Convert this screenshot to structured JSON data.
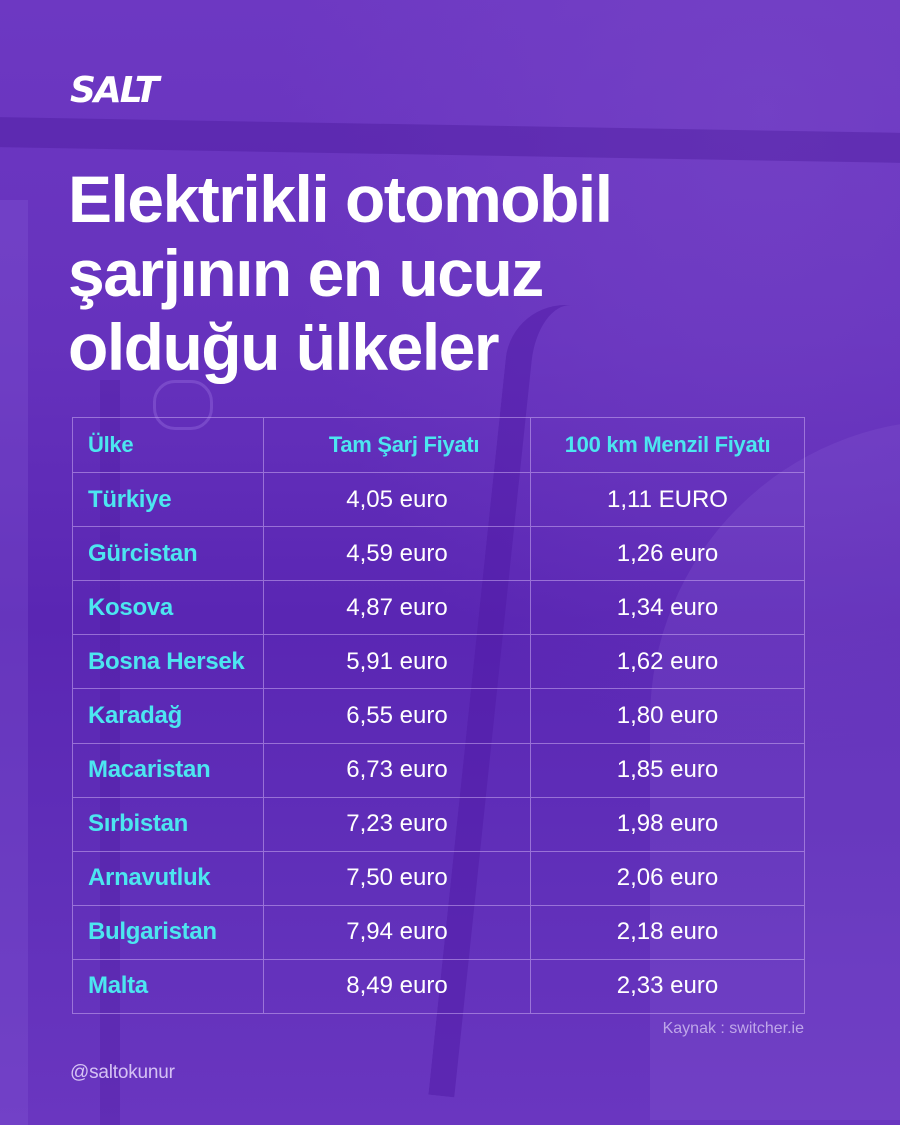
{
  "brand": {
    "logo": "SALT"
  },
  "title": {
    "lines": [
      "Elektrikli otomobil",
      "şarjının en ucuz",
      "olduğu ülkeler"
    ]
  },
  "table": {
    "headers": [
      "Ülke",
      "Tam Şarj Fiyatı",
      "100 km Menzil Fiyatı"
    ],
    "rows": [
      [
        "Türkiye",
        "4,05 euro",
        "1,11 EURO"
      ],
      [
        "Gürcistan",
        "4,59 euro",
        "1,26 euro"
      ],
      [
        "Kosova",
        "4,87 euro",
        "1,34 euro"
      ],
      [
        "Bosna Hersek",
        "5,91 euro",
        "1,62 euro"
      ],
      [
        "Karadağ",
        "6,55 euro",
        "1,80 euro"
      ],
      [
        "Macaristan",
        "6,73 euro",
        "1,85 euro"
      ],
      [
        "Sırbistan",
        "7,23 euro",
        "1,98 euro"
      ],
      [
        "Arnavutluk",
        "7,50 euro",
        "2,06 euro"
      ],
      [
        "Bulgaristan",
        "7,94 euro",
        "2,18 euro"
      ],
      [
        "Malta",
        "8,49 euro",
        "2,33 euro"
      ]
    ]
  },
  "footer": {
    "source": "Kaynak : switcher.ie",
    "handle": "@saltokunur"
  },
  "colors": {
    "background": "#6a36bf",
    "accent_cyan": "#4ce6f0",
    "text": "#ffffff"
  }
}
